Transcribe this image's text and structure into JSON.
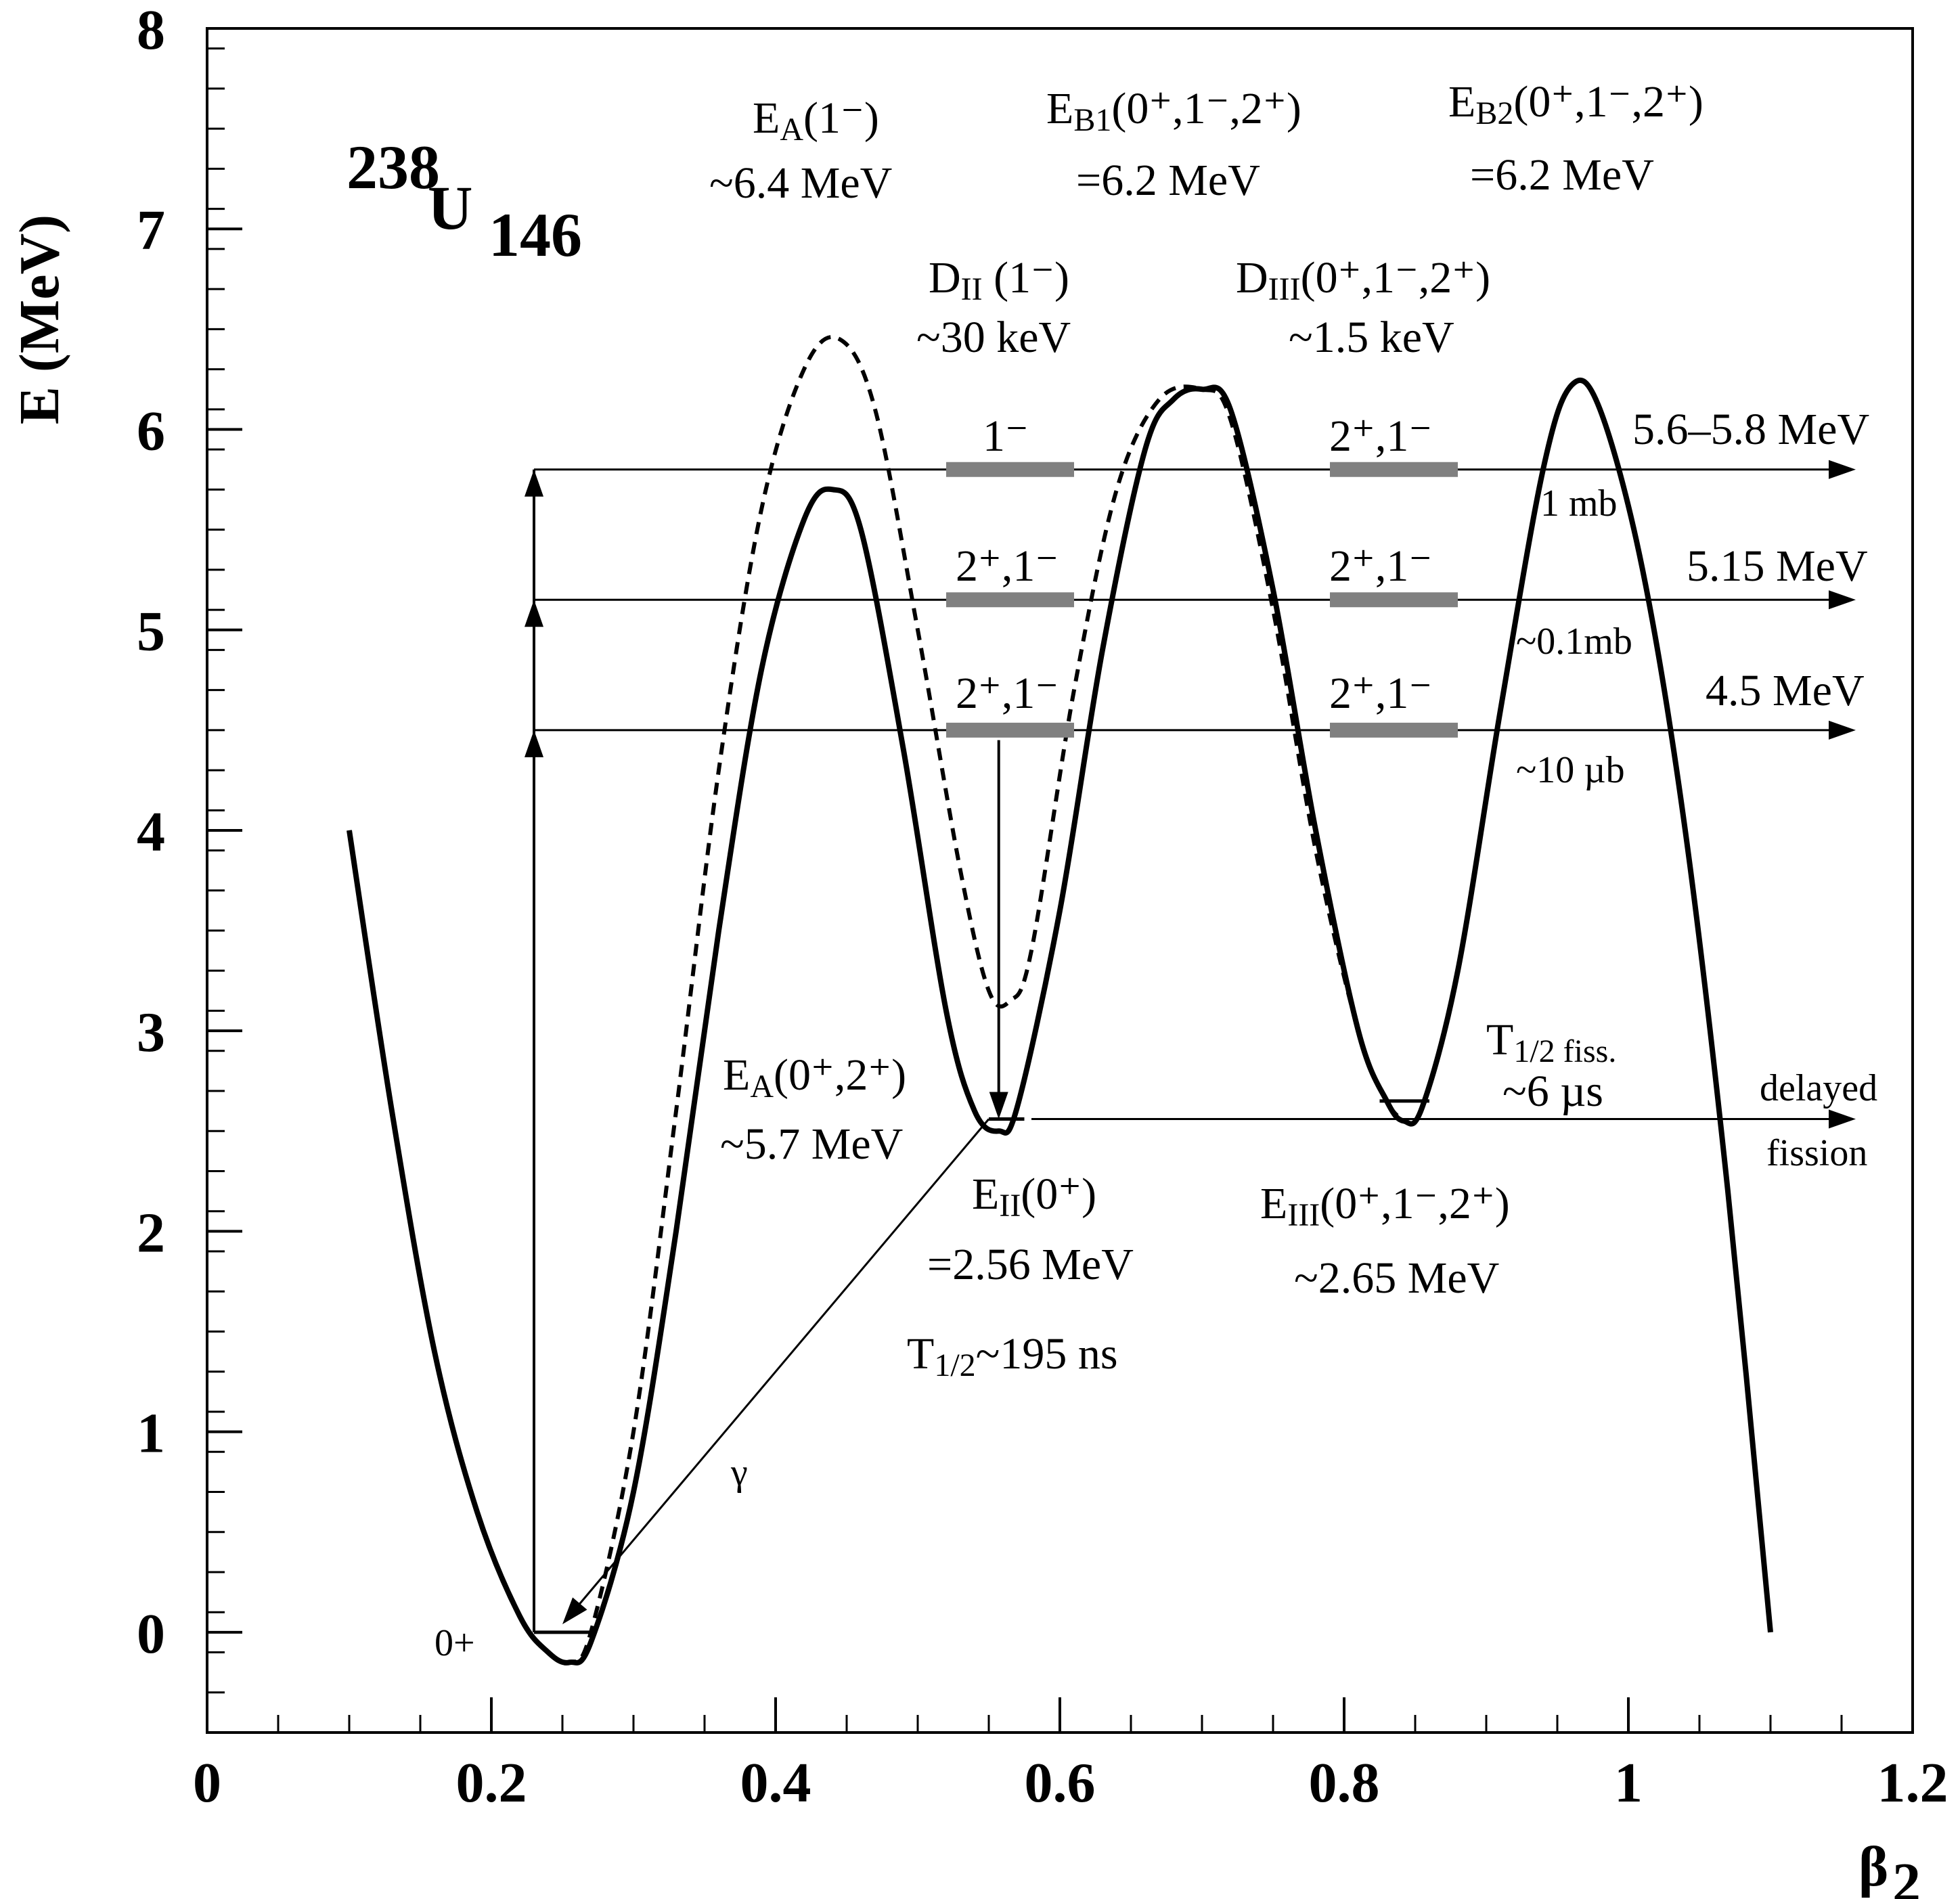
{
  "chart_data": {
    "type": "line",
    "title": "",
    "xlabel": "β",
    "xlabel_sub": "2",
    "ylabel": "E (MeV)",
    "xlim": [
      0,
      1.2
    ],
    "ylim": [
      -0.5,
      8
    ],
    "xticks": [
      0,
      0.2,
      0.4,
      0.6,
      0.8,
      1,
      1.2
    ],
    "xtick_labels": [
      "0",
      "0.2",
      "0.4",
      "0.6",
      "0.8",
      "1",
      "1.2"
    ],
    "yticks": [
      0,
      1,
      2,
      3,
      4,
      5,
      6,
      7,
      8
    ],
    "ytick_labels": [
      "0",
      "1",
      "2",
      "3",
      "4",
      "5",
      "6",
      "7",
      "8"
    ],
    "nucleus": {
      "mass": "238",
      "symbol": "U",
      "neutrons": "146"
    },
    "series": [
      {
        "style": "solid",
        "x": [
          0.1,
          0.13,
          0.16,
          0.19,
          0.22,
          0.24,
          0.255,
          0.27,
          0.3,
          0.33,
          0.36,
          0.39,
          0.42,
          0.44,
          0.46,
          0.49,
          0.52,
          0.54,
          0.557,
          0.57,
          0.6,
          0.63,
          0.66,
          0.68,
          0.7,
          0.72,
          0.75,
          0.78,
          0.81,
          0.83,
          0.842,
          0.855,
          0.88,
          0.91,
          0.94,
          0.96,
          0.98,
          1.01,
          1.04,
          1.07,
          1.1
        ],
        "y": [
          4.0,
          2.6,
          1.4,
          0.6,
          0.08,
          -0.1,
          -0.15,
          -0.05,
          0.7,
          2.0,
          3.5,
          4.8,
          5.55,
          5.7,
          5.5,
          4.4,
          3.1,
          2.6,
          2.5,
          2.62,
          3.6,
          4.9,
          5.9,
          6.15,
          6.2,
          6.1,
          5.2,
          4.0,
          3.0,
          2.65,
          2.55,
          2.62,
          3.3,
          4.6,
          5.8,
          6.22,
          6.1,
          5.3,
          4.0,
          2.2,
          0.0
        ]
      },
      {
        "style": "dashed",
        "x": [
          0.1,
          0.13,
          0.16,
          0.19,
          0.22,
          0.24,
          0.255,
          0.27,
          0.3,
          0.33,
          0.36,
          0.39,
          0.42,
          0.445,
          0.47,
          0.5,
          0.53,
          0.55,
          0.565,
          0.58,
          0.61,
          0.64,
          0.67,
          0.7,
          0.72,
          0.75,
          0.78,
          0.81,
          0.83,
          0.842
        ],
        "y": [
          4.0,
          2.6,
          1.4,
          0.6,
          0.08,
          -0.1,
          -0.15,
          0.0,
          1.0,
          2.6,
          4.3,
          5.6,
          6.3,
          6.45,
          6.1,
          5.0,
          3.8,
          3.2,
          3.15,
          3.4,
          4.7,
          5.7,
          6.15,
          6.2,
          6.05,
          5.1,
          3.9,
          3.0,
          2.65,
          2.55
        ]
      }
    ],
    "levels": [
      {
        "y": 5.8,
        "x_from": 0.23,
        "x_to": 1.16,
        "label": "5.6–5.8 MeV",
        "cross_section": "1 mb",
        "states_II": "1⁻",
        "states_III": "2⁺,1⁻"
      },
      {
        "y": 5.15,
        "x_from": 0.23,
        "x_to": 1.16,
        "label": "5.15 MeV",
        "cross_section": "~0.1mb",
        "states_II": "2⁺,1⁻",
        "states_III": "2⁺,1⁻"
      },
      {
        "y": 4.5,
        "x_from": 0.23,
        "x_to": 1.16,
        "label": "4.5 MeV",
        "cross_section": "~10 µb",
        "states_II": "2⁺,1⁻",
        "states_III": "2⁺,1⁻"
      }
    ],
    "level_bars": [
      {
        "x_from": 0.52,
        "x_to": 0.61,
        "y": 5.8
      },
      {
        "x_from": 0.79,
        "x_to": 0.88,
        "y": 5.8
      },
      {
        "x_from": 0.52,
        "x_to": 0.61,
        "y": 5.15
      },
      {
        "x_from": 0.79,
        "x_to": 0.88,
        "y": 5.15
      },
      {
        "x_from": 0.52,
        "x_to": 0.61,
        "y": 4.5
      },
      {
        "x_from": 0.79,
        "x_to": 0.88,
        "y": 4.5
      }
    ],
    "ground_state": {
      "x_from": 0.23,
      "x_to": 0.27,
      "y": 0,
      "label": "0+"
    },
    "isomer_II": {
      "x_from": 0.55,
      "x_to": 0.575,
      "y": 2.56
    },
    "isomer_III": {
      "x_from": 0.825,
      "x_to": 0.86,
      "y": 2.65
    },
    "arrows": {
      "excitation": {
        "x": 0.23,
        "y_from": 0,
        "y_to": 5.8,
        "heads": [
          4.5,
          5.15,
          5.8
        ]
      },
      "decay_to_isomer": {
        "x": 0.557,
        "y_from": 4.45,
        "y_to": 2.56
      },
      "gamma": {
        "x_from": 0.55,
        "y_from": 2.56,
        "x_to": 0.25,
        "y_to": 0.04,
        "label": "γ"
      },
      "delayed_fission": {
        "x_from": 0.58,
        "x_to": 1.16,
        "y": 2.56
      }
    },
    "annotations": {
      "EA1_line1": "E",
      "EA1_sub": "A",
      "EA1_rest": "(1⁻)",
      "EA1_value": "~6.4 MeV",
      "EB1_line1": "E",
      "EB1_sub": "B1",
      "EB1_rest": "(0⁺,1⁻,2⁺)",
      "EB1_value": "=6.2 MeV",
      "EB2_line1": "E",
      "EB2_sub": "B2",
      "EB2_rest": "(0⁺,1⁻,2⁺)",
      "EB2_value": "=6.2 MeV",
      "DII_line1": "D",
      "DII_sub": "II",
      "DII_rest": " (1⁻)",
      "DII_value": "~30 keV",
      "DIII_line1": "D",
      "DIII_sub": "III",
      "DIII_rest": "(0⁺,1⁻,2⁺)",
      "DIII_value": "~1.5 keV",
      "EA02_line1": "E",
      "EA02_sub": "A",
      "EA02_rest": "(0⁺,2⁺)",
      "EA02_value": "~5.7 MeV",
      "EII_line1": "E",
      "EII_sub": "II",
      "EII_rest": "(0⁺)",
      "EII_value": "=2.56 MeV",
      "EII_half_T": "T",
      "EII_half_sub": "1/2",
      "EII_half_rest": "~195 ns",
      "EIII_line1": "E",
      "EIII_sub": "III",
      "EIII_rest": "(0⁺,1⁻,2⁺)",
      "EIII_value": "~2.65 MeV",
      "fiss_T": "T",
      "fiss_sub": "1/2 fiss.",
      "fiss_value": "~6 µs",
      "delayed_1": "delayed",
      "delayed_2": "fission"
    }
  }
}
